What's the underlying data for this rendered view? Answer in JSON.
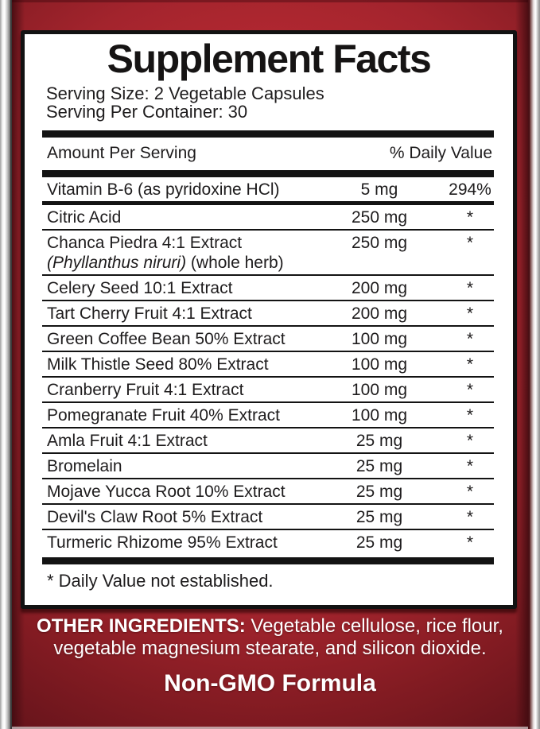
{
  "label": {
    "title": "Supplement Facts",
    "serving_size": "Serving Size: 2 Vegetable Capsules",
    "servings_per_container": "Serving Per Container: 30",
    "header": {
      "amount": "Amount Per Serving",
      "daily_value": "% Daily Value"
    },
    "rows": [
      {
        "name": "Vitamin B-6 (as pyridoxine HCl)",
        "amount": "5 mg",
        "dv": "294%"
      },
      {
        "name": "Citric Acid",
        "amount": "250 mg",
        "dv": "*"
      },
      {
        "name": "Chanca Piedra 4:1 Extract",
        "sub_italic": "(Phyllanthus niruri)",
        "sub_regular": " (whole herb)",
        "amount": "250 mg",
        "dv": "*"
      },
      {
        "name": "Celery Seed 10:1 Extract",
        "amount": "200 mg",
        "dv": "*"
      },
      {
        "name": "Tart Cherry Fruit 4:1 Extract",
        "amount": "200 mg",
        "dv": "*"
      },
      {
        "name": "Green Coffee Bean 50% Extract",
        "amount": "100 mg",
        "dv": "*"
      },
      {
        "name": "Milk Thistle Seed 80% Extract",
        "amount": "100 mg",
        "dv": "*"
      },
      {
        "name": "Cranberry Fruit 4:1 Extract",
        "amount": "100 mg",
        "dv": "*"
      },
      {
        "name": "Pomegranate Fruit 40% Extract",
        "amount": "100 mg",
        "dv": "*"
      },
      {
        "name": "Amla Fruit 4:1 Extract",
        "amount": "25 mg",
        "dv": "*"
      },
      {
        "name": "Bromelain",
        "amount": "25 mg",
        "dv": "*"
      },
      {
        "name": "Mojave Yucca Root 10% Extract",
        "amount": "25 mg",
        "dv": "*"
      },
      {
        "name": "Devil's Claw Root 5% Extract",
        "amount": "25 mg",
        "dv": "*"
      },
      {
        "name": "Turmeric Rhizome 95% Extract",
        "amount": "25 mg",
        "dv": "*"
      }
    ],
    "footnote": "* Daily Value not established.",
    "other_ingredients": {
      "bold_label": "OTHER INGREDIENTS:",
      "line1_rest": " Vegetable cellulose, rice flour,",
      "line2": "vegetable magnesium stearate, and silicon dioxide."
    },
    "non_gmo": "Non-GMO Formula"
  },
  "colors": {
    "label_red_bright": "#c5303a",
    "label_red_dark": "#62131a",
    "panel_background": "#ffffff",
    "panel_border": "#121212",
    "facts_text": "#1e1c1d",
    "bottom_text": "#ffffff",
    "metal_edge_highlight": "#ffffff"
  }
}
